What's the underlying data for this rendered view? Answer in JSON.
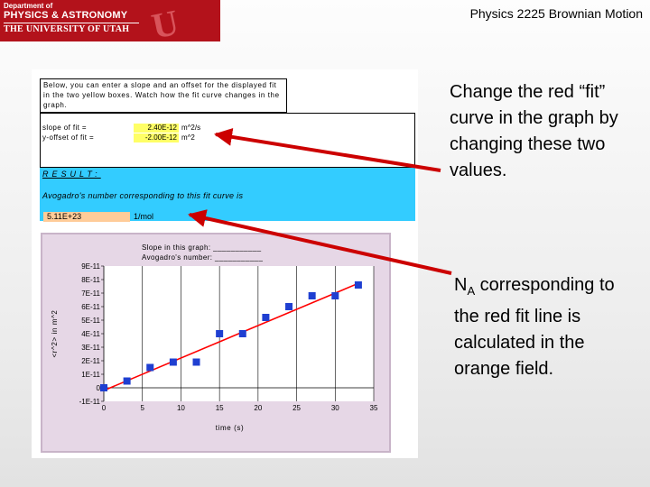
{
  "header": {
    "logo": {
      "line1": "Department of",
      "line2": "PHYSICS & ASTRONOMY",
      "line3": "THE UNIVERSITY OF UTAH"
    },
    "title": "Physics 2225  Brownian Motion",
    "logo_color": "#b3121b"
  },
  "sheet": {
    "instructions": "Below, you can enter a slope and an offset for the displayed fit in the two yellow boxes. Watch how the fit curve changes in the graph.",
    "slope": {
      "label": "slope of fit =",
      "value": "2.40E-12",
      "unit": "m^2/s"
    },
    "offset": {
      "label": "y-offset of fit =",
      "value": "-2.00E-12",
      "unit": "m^2"
    },
    "result": {
      "title": "RESULT:",
      "label": "Avogadro's number corresponding to this fit curve is",
      "value": "5.11E+23",
      "unit": "1/mol"
    },
    "colors": {
      "input": "#ffff66",
      "result_bg": "#33ccff",
      "output": "#ffcc99"
    }
  },
  "chart_data": {
    "type": "scatter",
    "annotations": [
      "Slope in this graph: ___________",
      "Avogadro's number: ___________"
    ],
    "xlabel": "time (s)",
    "ylabel": "<r^2> in m^2",
    "x_ticks": [
      "0",
      "5",
      "10",
      "15",
      "20",
      "25",
      "30",
      "35"
    ],
    "y_ticks": [
      "-1E-11",
      "0",
      "1E-11",
      "2E-11",
      "3E-11",
      "4E-11",
      "5E-11",
      "6E-11",
      "7E-11",
      "8E-11",
      "9E-11"
    ],
    "xlim": [
      0,
      35
    ],
    "ylim": [
      -1e-11,
      9e-11
    ],
    "grid": "vertical",
    "series": [
      {
        "type": "scatter",
        "color": "#1f3fd1",
        "x": [
          0,
          3,
          6,
          9,
          12,
          15,
          18,
          21,
          24,
          27,
          30,
          33
        ],
        "y": [
          0,
          5e-12,
          1.5e-11,
          1.9e-11,
          1.9e-11,
          4e-11,
          4e-11,
          5.2e-11,
          6e-11,
          6.8e-11,
          6.8e-11,
          7.6e-11
        ]
      },
      {
        "type": "line",
        "color": "#ff0000",
        "slope": 2.4e-12,
        "offset": -2e-12,
        "x": [
          0,
          33
        ]
      }
    ]
  },
  "callouts": {
    "top": "Change the red “fit” curve in the graph by changing these two values.",
    "bottom_prefix": "N",
    "bottom_sub": "A",
    "bottom_rest": " corresponding to the red fit line is calculated in the orange field."
  },
  "arrow_color": "#cc0000"
}
